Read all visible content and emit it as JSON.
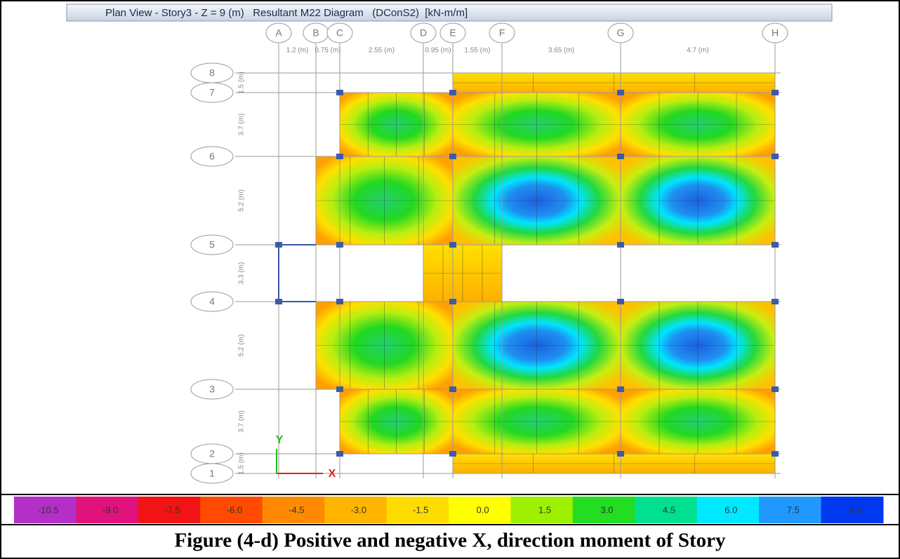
{
  "window_title": "Plan View - Story3 - Z = 9 (m)   Resultant M22 Diagram   (DConS2)  [kN-m/m]",
  "grid_x": [
    "A",
    "B",
    "C",
    "D",
    "E",
    "F",
    "G",
    "H"
  ],
  "x_spacings": [
    "1.2 (m)",
    "0.75 (m)",
    "2.55 (m)",
    "0.95 (m)",
    "1.55 (m)",
    "3.65 (m)",
    "4.7 (m)"
  ],
  "grid_y": [
    "8",
    "7",
    "6",
    "5",
    "4",
    "3",
    "2",
    "1"
  ],
  "y_spacings": [
    "1.5 (m)",
    "3.7 (m)",
    "5.2 (m)",
    "3.3 (m)",
    "5.2 (m)",
    "3.7 (m)",
    "1.5 (m)"
  ],
  "axes": [
    "Y",
    "X"
  ],
  "legend": {
    "labels": [
      "-10.5",
      "-9.0",
      "-7.5",
      "-6.0",
      "-4.5",
      "-3.0",
      "-1.5",
      "0.0",
      "1.5",
      "3.0",
      "4.5",
      "6.0",
      "7.5",
      "9.0"
    ],
    "colors": [
      "#b42ec8",
      "#e0127c",
      "#f21414",
      "#ff4a00",
      "#ff8a00",
      "#ffb400",
      "#ffdc00",
      "#ffff00",
      "#9cf000",
      "#22dd22",
      "#00e090",
      "#00e8ff",
      "#2098ff",
      "#0038f0"
    ]
  },
  "caption": "Figure (4-d) Positive and negative X, direction moment of Story"
}
